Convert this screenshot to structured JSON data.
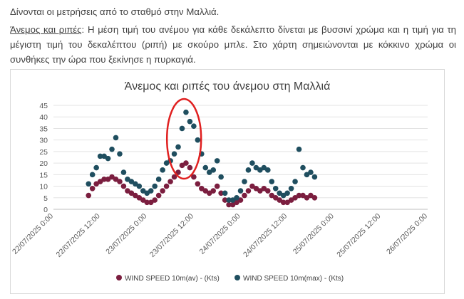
{
  "intro": {
    "line1": "Δίνονται οι μετρήσεις από το σταθμό στην Μαλλιά.",
    "para_label": "Άνεμος και ριπές",
    "para_text": ": Η μέση τιμή του ανέμου για κάθε δεκάλεπτο δίνεται με βυσσινί χρώμα και η τιμή για τη μέγιστη τιμή του δεκαλέπτου (ριπή) με σκούρο μπλε. Στο χάρτη σημειώνονται με κόκκινο χρώμα οι συνθήκες την ώρα που ξεκίνησε η πυρκαγιά."
  },
  "chart_data": {
    "type": "scatter",
    "title": "Άνεμος και ριπές του άνεμου στη Μαλλιά",
    "ylim": [
      0,
      45
    ],
    "yticks": [
      "0",
      "5",
      "10",
      "15",
      "20",
      "25",
      "30",
      "35",
      "40",
      "45"
    ],
    "xticks": [
      "22/07/2025 0:00",
      "22/07/2025 12:00",
      "23/07/2025 0:00",
      "23/07/2025 12:00",
      "24/07/2025 0:00",
      "24/07/2025 12:00",
      "25/07/2025 0:00",
      "25/07/2025 12:00",
      "26/07/2025 0:00"
    ],
    "x_range_hours": [
      0,
      96
    ],
    "legend_position": "bottom",
    "highlight": {
      "x_center_hours": 33.5,
      "y_center": 30.5,
      "color": "#e02020"
    },
    "series": [
      {
        "name": "WIND SPEED 10m(av) - (Kts)",
        "color": "#7b1e3f",
        "points": [
          [
            9,
            6
          ],
          [
            10,
            9
          ],
          [
            11,
            11
          ],
          [
            12,
            12
          ],
          [
            13,
            13
          ],
          [
            14,
            13
          ],
          [
            15,
            14
          ],
          [
            16,
            13
          ],
          [
            17,
            12
          ],
          [
            18,
            10
          ],
          [
            19,
            8
          ],
          [
            20,
            7
          ],
          [
            21,
            6
          ],
          [
            22,
            5
          ],
          [
            23,
            4
          ],
          [
            24,
            3
          ],
          [
            25,
            3
          ],
          [
            26,
            4
          ],
          [
            27,
            6
          ],
          [
            28,
            8
          ],
          [
            29,
            10
          ],
          [
            30,
            12
          ],
          [
            31,
            14
          ],
          [
            32,
            16
          ],
          [
            33,
            19
          ],
          [
            34,
            20
          ],
          [
            35,
            18
          ],
          [
            36,
            14
          ],
          [
            37,
            11
          ],
          [
            38,
            9
          ],
          [
            39,
            8
          ],
          [
            40,
            7
          ],
          [
            41,
            8
          ],
          [
            42,
            10
          ],
          [
            43,
            7
          ],
          [
            44,
            4
          ],
          [
            45,
            2
          ],
          [
            46,
            2
          ],
          [
            47,
            3
          ],
          [
            48,
            4
          ],
          [
            49,
            6
          ],
          [
            50,
            8
          ],
          [
            51,
            10
          ],
          [
            52,
            9
          ],
          [
            53,
            8
          ],
          [
            54,
            9
          ],
          [
            55,
            8
          ],
          [
            56,
            6
          ],
          [
            57,
            5
          ],
          [
            58,
            4
          ],
          [
            59,
            3
          ],
          [
            60,
            3
          ],
          [
            61,
            4
          ],
          [
            62,
            5
          ],
          [
            63,
            6
          ],
          [
            64,
            6
          ],
          [
            65,
            5
          ],
          [
            66,
            6
          ],
          [
            67,
            5
          ]
        ]
      },
      {
        "name": "WIND SPEED 10m(max) - (Kts)",
        "color": "#1f4e5f",
        "points": [
          [
            9,
            11
          ],
          [
            10,
            15
          ],
          [
            11,
            18
          ],
          [
            12,
            23
          ],
          [
            13,
            23
          ],
          [
            14,
            22
          ],
          [
            15,
            26
          ],
          [
            16,
            31
          ],
          [
            17,
            24
          ],
          [
            18,
            16
          ],
          [
            19,
            13
          ],
          [
            20,
            12
          ],
          [
            21,
            11
          ],
          [
            22,
            10
          ],
          [
            23,
            8
          ],
          [
            24,
            7
          ],
          [
            25,
            8
          ],
          [
            26,
            10
          ],
          [
            27,
            13
          ],
          [
            28,
            17
          ],
          [
            29,
            20
          ],
          [
            30,
            21
          ],
          [
            31,
            24
          ],
          [
            32,
            27
          ],
          [
            33,
            35
          ],
          [
            34,
            42
          ],
          [
            35,
            38
          ],
          [
            36,
            36
          ],
          [
            37,
            30
          ],
          [
            38,
            24
          ],
          [
            39,
            18
          ],
          [
            40,
            16
          ],
          [
            41,
            17
          ],
          [
            42,
            21
          ],
          [
            43,
            14
          ],
          [
            44,
            7
          ],
          [
            45,
            4
          ],
          [
            46,
            4
          ],
          [
            47,
            5
          ],
          [
            48,
            8
          ],
          [
            49,
            12
          ],
          [
            50,
            17
          ],
          [
            51,
            20
          ],
          [
            52,
            18
          ],
          [
            53,
            17
          ],
          [
            54,
            18
          ],
          [
            55,
            17
          ],
          [
            56,
            12
          ],
          [
            57,
            9
          ],
          [
            58,
            7
          ],
          [
            59,
            6
          ],
          [
            60,
            7
          ],
          [
            61,
            9
          ],
          [
            62,
            12
          ],
          [
            63,
            26
          ],
          [
            64,
            18
          ],
          [
            65,
            15
          ],
          [
            66,
            16
          ],
          [
            67,
            14
          ]
        ]
      }
    ]
  }
}
